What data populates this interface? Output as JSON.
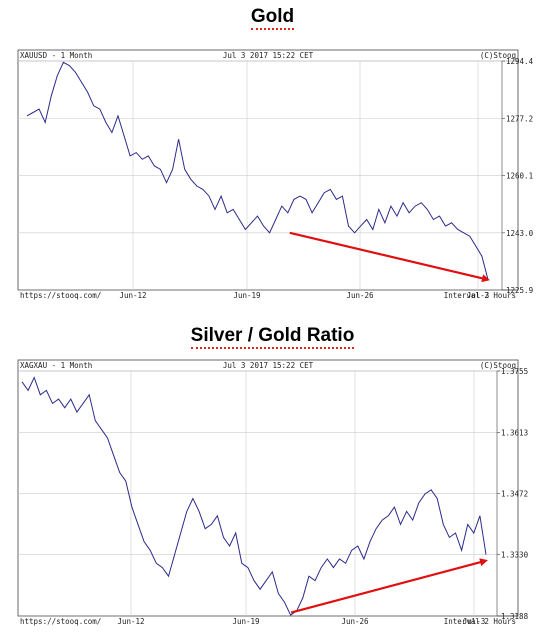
{
  "chart_data": [
    {
      "type": "line",
      "title": "Gold",
      "header_left": "XAUUSD - 1 Month",
      "header_center": "Jul 3 2017 15:22 CET",
      "header_right": "(C)Stooq",
      "footer_left": "https://stooq.com/",
      "footer_right": "Interval 2 Hours",
      "x_ticks": [
        "Jun-12",
        "Jun-19",
        "Jun-26",
        "Jul-3"
      ],
      "y_ticks": [
        "1294.4",
        "1277.2",
        "1260.1",
        "1243.0",
        "1225.9"
      ],
      "ylim": [
        1225.9,
        1294.4
      ],
      "grid": true,
      "line_color": "#2b2b8c",
      "arrow_color": "#e01010",
      "series": [
        {
          "values": [
            1278,
            1279,
            1280,
            1276,
            1284,
            1290,
            1294,
            1293,
            1291,
            1288,
            1285,
            1281,
            1280,
            1276,
            1273,
            1278,
            1272,
            1266,
            1267,
            1265,
            1266,
            1263,
            1262,
            1258,
            1262,
            1271,
            1262,
            1259,
            1257,
            1256,
            1254,
            1250,
            1254,
            1249,
            1250,
            1247,
            1244,
            1246,
            1248,
            1245,
            1243,
            1247,
            1251,
            1249,
            1253,
            1254,
            1253,
            1249,
            1252,
            1255,
            1256,
            1253,
            1254,
            1245,
            1243,
            1245,
            1247,
            1244,
            1250,
            1246,
            1251,
            1248,
            1252,
            1249,
            1251,
            1252,
            1250,
            1247,
            1248,
            1245,
            1246,
            1244,
            1243,
            1242,
            1239,
            1236,
            1229
          ]
        }
      ],
      "arrow": {
        "from": {
          "x_index": 57,
          "y": 1243
        },
        "to": {
          "x_index": 100,
          "y": 1229
        }
      }
    },
    {
      "type": "line",
      "title": "Silver / Gold Ratio",
      "header_left": "XAGXAU - 1 Month",
      "header_center": "Jul 3 2017 15:22 CET",
      "header_right": "(C)Stooq",
      "footer_left": "https://stooq.com/",
      "footer_right": "Interval 2 Hours",
      "x_ticks": [
        "Jun-12",
        "Jun-19",
        "Jun-26",
        "Jul-3"
      ],
      "y_ticks": [
        "1.3755",
        "1.3613",
        "1.3472",
        "1.3330",
        "1.3188"
      ],
      "ylim": [
        1.3188,
        1.3755
      ],
      "grid": true,
      "line_color": "#2b2b8c",
      "arrow_color": "#e01010",
      "series": [
        {
          "values": [
            1.373,
            1.371,
            1.374,
            1.37,
            1.371,
            1.368,
            1.369,
            1.367,
            1.369,
            1.366,
            1.368,
            1.37,
            1.364,
            1.362,
            1.36,
            1.356,
            1.352,
            1.35,
            1.344,
            1.34,
            1.336,
            1.334,
            1.331,
            1.33,
            1.328,
            1.333,
            1.338,
            1.343,
            1.346,
            1.343,
            1.339,
            1.34,
            1.342,
            1.337,
            1.335,
            1.338,
            1.331,
            1.33,
            1.327,
            1.325,
            1.327,
            1.329,
            1.324,
            1.322,
            1.319,
            1.32,
            1.323,
            1.328,
            1.327,
            1.33,
            1.332,
            1.33,
            1.332,
            1.331,
            1.334,
            1.335,
            1.332,
            1.336,
            1.339,
            1.341,
            1.342,
            1.344,
            1.34,
            1.343,
            1.341,
            1.345,
            1.347,
            1.348,
            1.346,
            1.34,
            1.337,
            1.338,
            1.334,
            1.34,
            1.338,
            1.342,
            1.333
          ]
        }
      ],
      "arrow": {
        "from": {
          "x_index": 58,
          "y": 1.3196
        },
        "to": {
          "x_index": 100,
          "y": 1.3316
        }
      }
    }
  ]
}
